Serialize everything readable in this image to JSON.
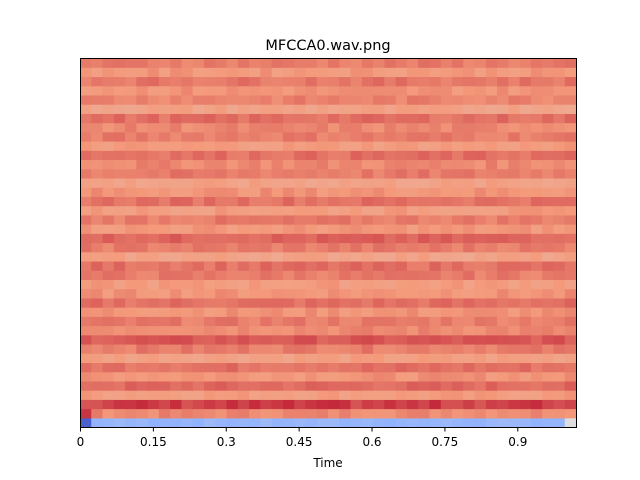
{
  "chart_data": {
    "type": "heatmap",
    "title": "MFCCA0.wav.png",
    "xlabel": "Time",
    "ylabel": "",
    "xlim": [
      0,
      1.0208
    ],
    "x_ticks": [
      {
        "value": 0,
        "label": "0"
      },
      {
        "value": 0.15,
        "label": "0.15"
      },
      {
        "value": 0.3,
        "label": "0.3"
      },
      {
        "value": 0.45,
        "label": "0.45"
      },
      {
        "value": 0.6,
        "label": "0.6"
      },
      {
        "value": 0.75,
        "label": "0.75"
      },
      {
        "value": 0.9,
        "label": "0.9"
      }
    ],
    "y_ticks": [],
    "colormap": "coolwarm",
    "n_coefficients": 40,
    "n_frames": 44,
    "color_range": [
      0,
      1
    ],
    "row_levels": [
      0.3,
      0.78,
      0.9,
      0.74,
      0.83,
      0.76,
      0.82,
      0.73,
      0.8,
      0.86,
      0.78,
      0.8,
      0.76,
      0.82,
      0.76,
      0.74,
      0.8,
      0.82,
      0.72,
      0.8,
      0.84,
      0.75,
      0.8,
      0.74,
      0.82,
      0.76,
      0.72,
      0.8,
      0.78,
      0.82,
      0.74,
      0.8,
      0.78,
      0.82,
      0.72,
      0.79,
      0.76,
      0.81,
      0.75,
      0.8
    ],
    "grid": false,
    "legend": "none"
  }
}
